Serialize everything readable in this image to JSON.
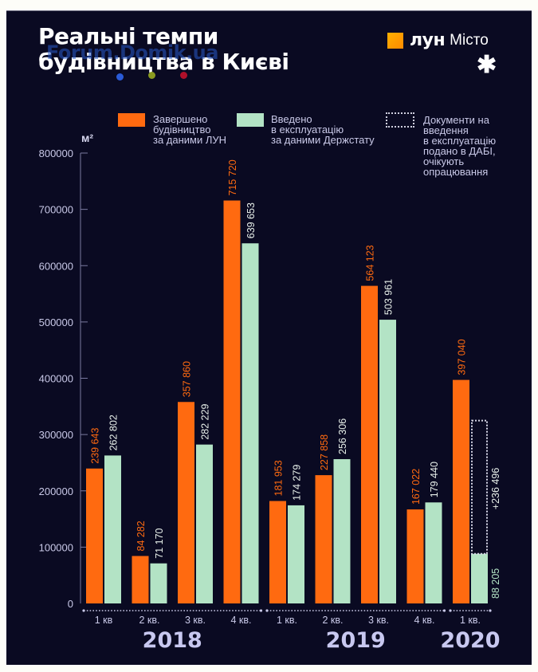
{
  "header": {
    "title_line1": "Реальні темпи",
    "title_line2": "будівництва в Києві",
    "watermark": "Forum.Domik.ua",
    "logo_brand": "лун",
    "logo_city": "Місто",
    "emblem": "chestnut-leaf-icon"
  },
  "colors": {
    "background": "#0a0a22",
    "lun": "#ff6a10",
    "derzhstat": "#b3e3c5",
    "axis_text": "#c9c9e8",
    "year_text": "#c8c8f0"
  },
  "legend": [
    {
      "key": "lun",
      "text": "Завершено\nбудівництво\nза даними ЛУН"
    },
    {
      "key": "derzhstat",
      "text": "Введено\nв експлуатацію\nза даними Держстату"
    },
    {
      "key": "pending",
      "text": "Документи на\nвведення\nв експлуатацію\nподано в ДАБІ,\nочікують\nопрацювання"
    }
  ],
  "chart_data": {
    "type": "bar",
    "title": "Реальні темпи будівництва в Києві",
    "ylabel": "м²",
    "xlabel": "",
    "ylim": [
      0,
      800000
    ],
    "yticks": [
      0,
      100000,
      200000,
      300000,
      400000,
      500000,
      600000,
      700000,
      800000
    ],
    "ytick_labels": [
      "0",
      "100000",
      "200000",
      "300000",
      "400000",
      "500000",
      "600000",
      "700000",
      "800000"
    ],
    "grid": false,
    "legend_position": "top",
    "categories": [
      "1 кв",
      "2 кв.",
      "3 кв.",
      "4 кв.",
      "1 кв.",
      "2 кв.",
      "3 кв.",
      "4 кв.",
      "1 кв."
    ],
    "years": [
      {
        "label": "2018",
        "quarters": [
          0,
          1,
          2,
          3
        ]
      },
      {
        "label": "2019",
        "quarters": [
          4,
          5,
          6,
          7
        ]
      },
      {
        "label": "2020",
        "quarters": [
          8
        ]
      }
    ],
    "series": [
      {
        "name": "Завершено будівництво за даними ЛУН",
        "values": [
          239643,
          84282,
          357860,
          715720,
          181953,
          227858,
          564123,
          167022,
          397040
        ],
        "labels": [
          "239 643",
          "84 282",
          "357 860",
          "715 720",
          "181 953",
          "227 858",
          "564 123",
          "167 022",
          "397 040"
        ]
      },
      {
        "name": "Введено в експлуатацію за даними Держстату",
        "values": [
          262802,
          71170,
          282229,
          639653,
          174279,
          256306,
          503961,
          179440,
          88205
        ],
        "labels": [
          "262 802",
          "71 170",
          "282 229",
          "639 653",
          "174 279",
          "256 306",
          "503 961",
          "179 440",
          "88 205"
        ]
      },
      {
        "name": "Документи на введення в експлуатацію подано в ДАБІ, очікують опрацювання",
        "stacked_on": "Введено в експлуатацію за даними Держстату",
        "values": [
          null,
          null,
          null,
          null,
          null,
          null,
          null,
          null,
          236496
        ],
        "labels": [
          null,
          null,
          null,
          null,
          null,
          null,
          null,
          null,
          "+236 496"
        ]
      }
    ]
  }
}
